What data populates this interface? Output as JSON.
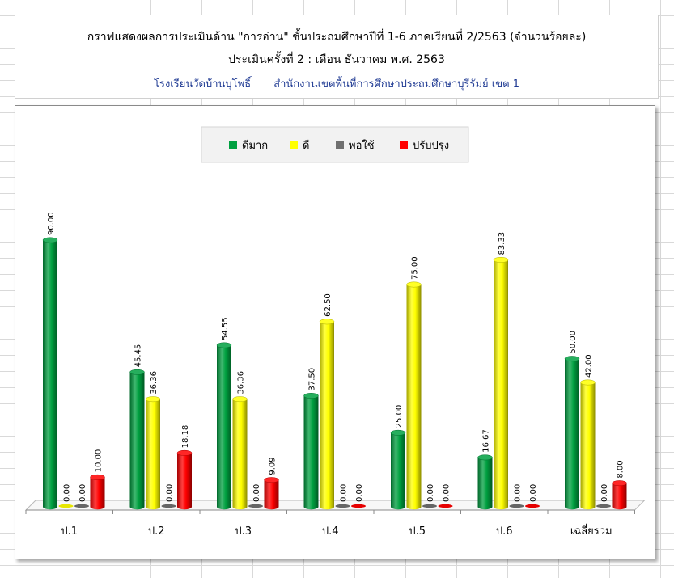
{
  "header": {
    "line1": "กราฟแสดงผลการประเมินด้าน \"การอ่าน\"  ชั้นประถมศึกษาปีที่ 1-6 ภาคเรียนที่ 2/2563 (จำนวนร้อยละ)",
    "line2": "ประเมินครั้งที่ 2 : เดือน ธันวาคม  พ.ศ. 2563",
    "school": "โรงเรียนวัดบ้านบุโพธิ์",
    "office": "สำนักงานเขตพื้นที่การศึกษาประถมศึกษาบุรีรัมย์ เขต 1"
  },
  "chart_data": {
    "type": "bar",
    "style": "3d-cylinder",
    "categories": [
      "ป.1",
      "ป.2",
      "ป.3",
      "ป.4",
      "ป.5",
      "ป.6",
      "เฉลี่ยรวม"
    ],
    "series": [
      {
        "name": "ดีมาก",
        "color": "#00a040",
        "values": [
          90.0,
          45.45,
          54.55,
          37.5,
          25.0,
          16.67,
          50.0
        ]
      },
      {
        "name": "ดี",
        "color": "#ffff00",
        "values": [
          0.0,
          36.36,
          36.36,
          62.5,
          75.0,
          83.33,
          42.0
        ]
      },
      {
        "name": "พอใช้",
        "color": "#707070",
        "values": [
          0.0,
          0.0,
          0.0,
          0.0,
          0.0,
          0.0,
          0.0
        ]
      },
      {
        "name": "ปรับปรุง",
        "color": "#ff0000",
        "values": [
          10.0,
          18.18,
          9.09,
          0.0,
          0.0,
          0.0,
          8.0
        ]
      }
    ],
    "ylim": [
      0,
      100
    ],
    "grid": false,
    "legend_position": "top",
    "data_labels_shown": [
      [
        true,
        true,
        true,
        true,
        true,
        true,
        true
      ],
      [
        true,
        true,
        true,
        true,
        true,
        true,
        true
      ],
      [
        true,
        true,
        true,
        true,
        true,
        true,
        true
      ],
      [
        true,
        true,
        true,
        true,
        true,
        true,
        true
      ]
    ]
  }
}
